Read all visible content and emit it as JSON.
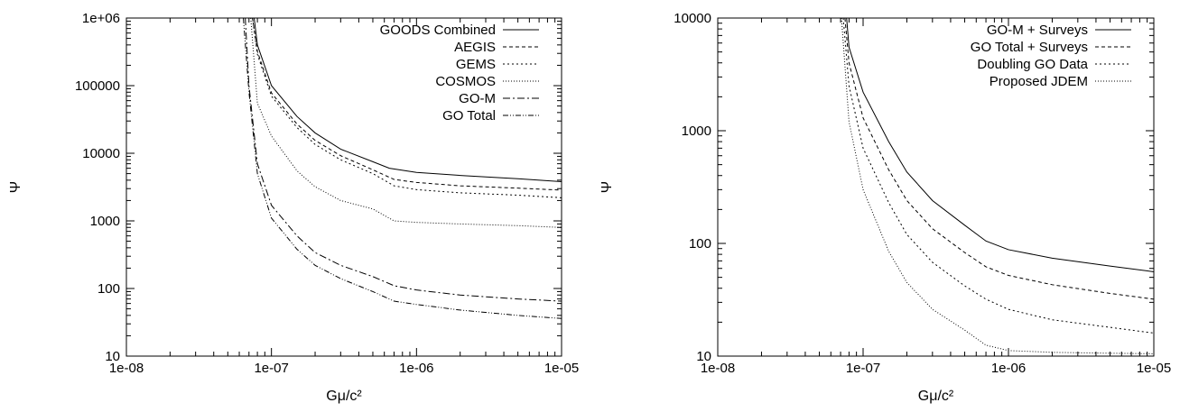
{
  "chart_data": [
    {
      "type": "line",
      "xlabel": "Gμ/c²",
      "ylabel": "Ψ",
      "xscale": "log",
      "yscale": "log",
      "xlim": [
        1e-08,
        1e-05
      ],
      "ylim": [
        10,
        1000000
      ],
      "xticks": [
        "1e-08",
        "1e-07",
        "1e-06",
        "1e-05"
      ],
      "yticks": [
        "10",
        "100",
        "1000",
        "10000",
        "100000",
        "1e+06"
      ],
      "grid": false,
      "legend_position": "top-right",
      "series": [
        {
          "name": "GOODS Combined",
          "dash": "solid",
          "points": [
            [
              7.6e-08,
              1000000
            ],
            [
              8e-08,
              400000
            ],
            [
              1e-07,
              100000
            ],
            [
              1.5e-07,
              35000
            ],
            [
              2e-07,
              20000
            ],
            [
              3e-07,
              11500
            ],
            [
              5e-07,
              7500
            ],
            [
              6.5e-07,
              6000
            ],
            [
              1e-06,
              5200
            ],
            [
              2e-06,
              4700
            ],
            [
              5e-06,
              4200
            ],
            [
              1e-05,
              3800
            ]
          ]
        },
        {
          "name": "AEGIS",
          "dash": "4,3",
          "points": [
            [
              7.4e-08,
              1000000
            ],
            [
              8e-08,
              320000
            ],
            [
              1e-07,
              78000
            ],
            [
              1.5e-07,
              27000
            ],
            [
              2e-07,
              15500
            ],
            [
              3e-07,
              9200
            ],
            [
              5e-07,
              5700
            ],
            [
              7e-07,
              4100
            ],
            [
              1e-06,
              3700
            ],
            [
              2e-06,
              3300
            ],
            [
              5e-06,
              3050
            ],
            [
              1e-05,
              2850
            ]
          ]
        },
        {
          "name": "GEMS",
          "dash": "2,3",
          "points": [
            [
              7.4e-08,
              1000000
            ],
            [
              8e-08,
              290000
            ],
            [
              1e-07,
              70000
            ],
            [
              1.5e-07,
              24000
            ],
            [
              2e-07,
              13500
            ],
            [
              3e-07,
              8000
            ],
            [
              5e-07,
              5000
            ],
            [
              7e-07,
              3300
            ],
            [
              1e-06,
              2900
            ],
            [
              2e-06,
              2600
            ],
            [
              5e-06,
              2400
            ],
            [
              1e-05,
              2200
            ]
          ]
        },
        {
          "name": "COSMOS",
          "dash": "1,2",
          "points": [
            [
              7.2e-08,
              1000000
            ],
            [
              8e-08,
              55000
            ],
            [
              1e-07,
              18000
            ],
            [
              1.5e-07,
              5500
            ],
            [
              2e-07,
              3200
            ],
            [
              3e-07,
              2000
            ],
            [
              5e-07,
              1500
            ],
            [
              7e-07,
              1000
            ],
            [
              1e-06,
              950
            ],
            [
              2e-06,
              900
            ],
            [
              5e-06,
              850
            ],
            [
              1e-05,
              800
            ]
          ]
        },
        {
          "name": "GO-M",
          "dash": "8,3,2,3",
          "points": [
            [
              6.6e-08,
              1000000
            ],
            [
              7e-08,
              100000
            ],
            [
              8e-08,
              7000
            ],
            [
              1e-07,
              1700
            ],
            [
              1.5e-07,
              600
            ],
            [
              2e-07,
              340
            ],
            [
              3e-07,
              220
            ],
            [
              5e-07,
              150
            ],
            [
              7e-07,
              110
            ],
            [
              1e-06,
              95
            ],
            [
              2e-06,
              80
            ],
            [
              5e-06,
              70
            ],
            [
              1e-05,
              65
            ]
          ]
        },
        {
          "name": "GO Total",
          "dash": "6,2,1,2,1,2",
          "points": [
            [
              6.4e-08,
              1000000
            ],
            [
              7e-08,
              80000
            ],
            [
              8e-08,
              5000
            ],
            [
              1e-07,
              1100
            ],
            [
              1.5e-07,
              380
            ],
            [
              2e-07,
              220
            ],
            [
              3e-07,
              140
            ],
            [
              5e-07,
              90
            ],
            [
              7e-07,
              65
            ],
            [
              1e-06,
              58
            ],
            [
              2e-06,
              48
            ],
            [
              5e-06,
              40
            ],
            [
              1e-05,
              36
            ]
          ]
        }
      ]
    },
    {
      "type": "line",
      "xlabel": "Gμ/c²",
      "ylabel": "Ψ",
      "xscale": "log",
      "yscale": "log",
      "xlim": [
        1e-08,
        1e-05
      ],
      "ylim": [
        10,
        10000
      ],
      "xticks": [
        "1e-08",
        "1e-07",
        "1e-06",
        "1e-05"
      ],
      "yticks": [
        "10",
        "100",
        "1000",
        "10000"
      ],
      "grid": false,
      "legend_position": "top-right",
      "series": [
        {
          "name": "GO-M + Surveys",
          "dash": "solid",
          "points": [
            [
              7.7e-08,
              10000
            ],
            [
              8e-08,
              5500
            ],
            [
              1e-07,
              2200
            ],
            [
              1.5e-07,
              800
            ],
            [
              2e-07,
              430
            ],
            [
              3e-07,
              240
            ],
            [
              5e-07,
              145
            ],
            [
              7e-07,
              105
            ],
            [
              1e-06,
              88
            ],
            [
              2e-06,
              74
            ],
            [
              5e-06,
              63
            ],
            [
              1e-05,
              56
            ]
          ]
        },
        {
          "name": "GO Total + Surveys",
          "dash": "4,3",
          "points": [
            [
              7.5e-08,
              10000
            ],
            [
              8e-08,
              4000
            ],
            [
              1e-07,
              1300
            ],
            [
              1.5e-07,
              450
            ],
            [
              2e-07,
              240
            ],
            [
              3e-07,
              135
            ],
            [
              5e-07,
              83
            ],
            [
              7e-07,
              62
            ],
            [
              1e-06,
              52
            ],
            [
              2e-06,
              43
            ],
            [
              5e-06,
              36
            ],
            [
              1e-05,
              32
            ]
          ]
        },
        {
          "name": "Doubling GO Data",
          "dash": "2,3",
          "points": [
            [
              7.3e-08,
              10000
            ],
            [
              8e-08,
              2500
            ],
            [
              1e-07,
              700
            ],
            [
              1.5e-07,
              230
            ],
            [
              2e-07,
              120
            ],
            [
              3e-07,
              68
            ],
            [
              5e-07,
              42
            ],
            [
              7e-07,
              32
            ],
            [
              1e-06,
              26
            ],
            [
              2e-06,
              21
            ],
            [
              5e-06,
              18
            ],
            [
              1e-05,
              16
            ]
          ]
        },
        {
          "name": "Proposed JDEM",
          "dash": "1,2",
          "points": [
            [
              7.1e-08,
              10000
            ],
            [
              8e-08,
              1200
            ],
            [
              1e-07,
              300
            ],
            [
              1.5e-07,
              85
            ],
            [
              2e-07,
              45
            ],
            [
              3e-07,
              26
            ],
            [
              5e-07,
              17
            ],
            [
              7e-07,
              12.5
            ],
            [
              1e-06,
              11.2
            ],
            [
              2e-06,
              10.8
            ],
            [
              5e-06,
              10.6
            ],
            [
              1e-05,
              10.5
            ]
          ]
        }
      ]
    }
  ]
}
